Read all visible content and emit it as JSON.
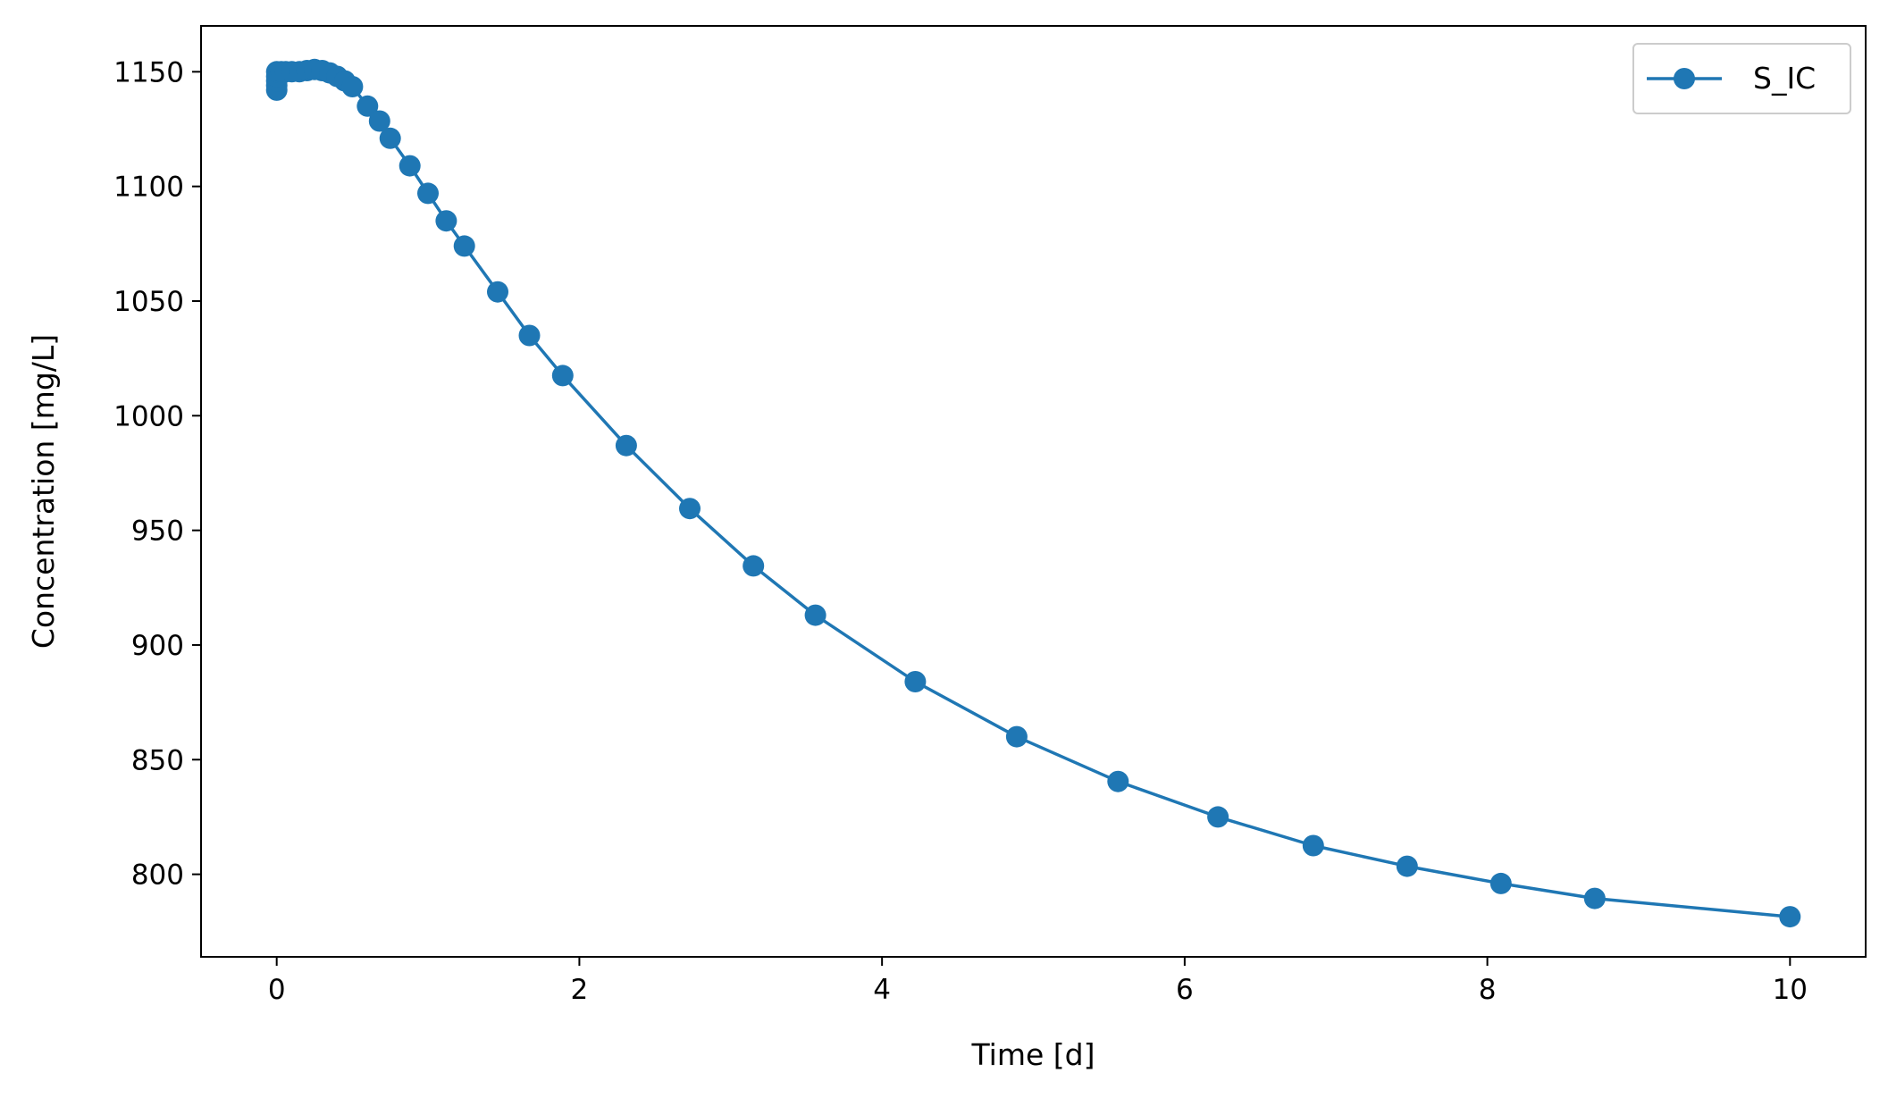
{
  "chart_data": {
    "type": "line",
    "xlabel": "Time [d]",
    "ylabel": "Concentration [mg/L]",
    "xlim": [
      -0.5,
      10.5
    ],
    "ylim": [
      764,
      1170
    ],
    "xticks": [
      0,
      2,
      4,
      6,
      8,
      10
    ],
    "yticks": [
      800,
      850,
      900,
      950,
      1000,
      1050,
      1100,
      1150
    ],
    "grid": false,
    "legend": {
      "position": "top-right"
    },
    "colors": {
      "series": "#1f77b4",
      "axes": "#000000"
    },
    "series": [
      {
        "name": "S_IC",
        "marker": "circle",
        "points": [
          [
            0.0,
            1142
          ],
          [
            0.0,
            1144
          ],
          [
            0.0,
            1146
          ],
          [
            0.0,
            1148
          ],
          [
            0.0,
            1150
          ],
          [
            0.03,
            1150
          ],
          [
            0.06,
            1150
          ],
          [
            0.1,
            1150
          ],
          [
            0.15,
            1150
          ],
          [
            0.2,
            1150.5
          ],
          [
            0.25,
            1151
          ],
          [
            0.3,
            1150.5
          ],
          [
            0.35,
            1149.5
          ],
          [
            0.4,
            1148
          ],
          [
            0.45,
            1146
          ],
          [
            0.5,
            1143.5
          ],
          [
            0.6,
            1135
          ],
          [
            0.68,
            1128.5
          ],
          [
            0.75,
            1121
          ],
          [
            0.88,
            1109
          ],
          [
            1.0,
            1097
          ],
          [
            1.12,
            1085
          ],
          [
            1.24,
            1074
          ],
          [
            1.46,
            1054
          ],
          [
            1.67,
            1035
          ],
          [
            1.89,
            1017.5
          ],
          [
            2.31,
            987
          ],
          [
            2.73,
            959.5
          ],
          [
            3.15,
            934.5
          ],
          [
            3.56,
            913
          ],
          [
            4.22,
            884
          ],
          [
            4.89,
            860
          ],
          [
            5.56,
            840.5
          ],
          [
            6.22,
            825
          ],
          [
            6.85,
            812.5
          ],
          [
            7.47,
            803.5
          ],
          [
            8.09,
            796
          ],
          [
            8.71,
            789.5
          ],
          [
            10.0,
            781.5
          ]
        ]
      }
    ]
  }
}
